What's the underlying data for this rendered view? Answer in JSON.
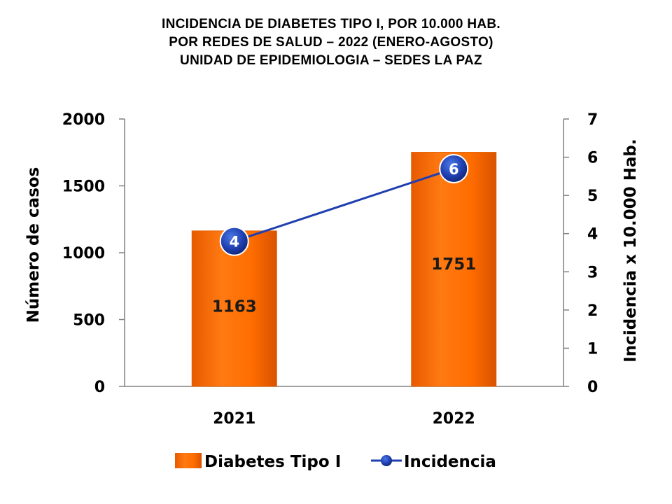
{
  "chart_data": {
    "type": "bar",
    "title_lines": [
      "INCIDENCIA  DE DIABETES  TIPO I, POR 10.000 HAB.",
      "POR REDES  DE SALUD – 2022 (ENERO-AGOSTO)",
      "UNIDAD DE EPIDEMIOLOGIA – SEDES LA PAZ"
    ],
    "categories": [
      "2021",
      "2022"
    ],
    "ylabel": "Número de casos",
    "y2label": "Incidencia x 10.000 Hab.",
    "ylim": [
      0,
      2000
    ],
    "yticks": [
      "0",
      "500",
      "1000",
      "1500",
      "2000"
    ],
    "y2lim": [
      0,
      7
    ],
    "y2ticks": [
      "0",
      "1",
      "2",
      "3",
      "4",
      "5",
      "6",
      "7"
    ],
    "legend_position": "bottom",
    "series": [
      {
        "name": "Diabetes Tipo I",
        "kind": "bar",
        "axis": "left",
        "color": "#FF6D00",
        "values": [
          1163,
          1751
        ],
        "labels": [
          "1163",
          "1751"
        ]
      },
      {
        "name": "Incidencia",
        "kind": "line",
        "axis": "right",
        "color": "#1F3FAF",
        "values": [
          3.8,
          5.7
        ],
        "labels": [
          "4",
          "6"
        ]
      }
    ]
  }
}
